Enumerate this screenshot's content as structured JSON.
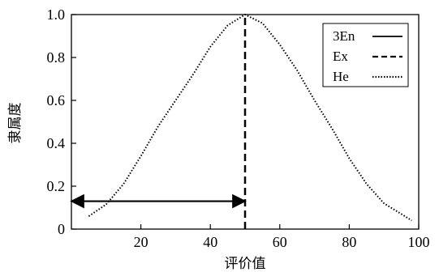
{
  "chart_data": {
    "type": "line",
    "xlabel": "评价值",
    "ylabel": "隶属度",
    "xlim": [
      0,
      100
    ],
    "ylim": [
      0,
      1.0
    ],
    "xticks": [
      20,
      40,
      60,
      80,
      100
    ],
    "xtick_labels": [
      "20",
      "40",
      "60",
      "80",
      "100"
    ],
    "yticks": [
      0,
      0.2,
      0.4,
      0.6,
      0.8,
      1.0
    ],
    "ytick_labels": [
      "0",
      "0.2",
      "0.4",
      "0.6",
      "0.8",
      "1.0"
    ],
    "grid": false,
    "legend_position": "top-right",
    "legend": [
      {
        "label": "3En",
        "style": "solid"
      },
      {
        "label": "Ex",
        "style": "dashed"
      },
      {
        "label": "He",
        "style": "dotted"
      }
    ],
    "series": [
      {
        "name": "He",
        "style": "dotted",
        "x": [
          5,
          10,
          15,
          20,
          25,
          30,
          35,
          40,
          45,
          50,
          55,
          60,
          65,
          70,
          75,
          80,
          85,
          90,
          95,
          98
        ],
        "y": [
          0.06,
          0.115,
          0.21,
          0.34,
          0.48,
          0.6,
          0.72,
          0.85,
          0.95,
          1.0,
          0.96,
          0.86,
          0.74,
          0.6,
          0.47,
          0.33,
          0.21,
          0.12,
          0.07,
          0.04
        ]
      },
      {
        "name": "Ex",
        "style": "dashed",
        "x": [
          50,
          50
        ],
        "y": [
          0,
          1.0
        ]
      }
    ],
    "annotation_arrow": {
      "style": "solid",
      "x_from": 0,
      "x_to": 50,
      "y": 0.13
    },
    "colors": {
      "line": "#000000",
      "background": "#ffffff"
    }
  }
}
